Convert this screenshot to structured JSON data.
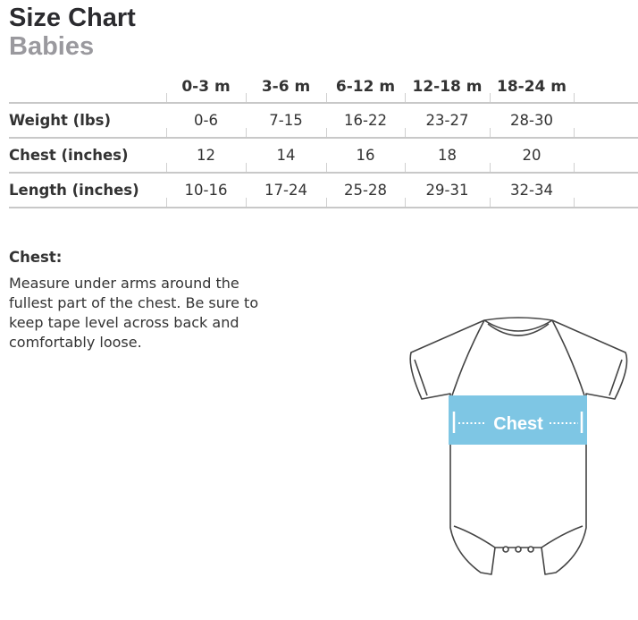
{
  "header": {
    "title": "Size Chart",
    "subtitle": "Babies"
  },
  "table": {
    "columns": [
      "0-3 m",
      "3-6 m",
      "6-12 m",
      "12-18 m",
      "18-24 m"
    ],
    "rows": [
      {
        "label": "Weight (lbs)",
        "values": [
          "0-6",
          "7-15",
          "16-22",
          "23-27",
          "28-30"
        ]
      },
      {
        "label": "Chest (inches)",
        "values": [
          "12",
          "14",
          "16",
          "18",
          "20"
        ]
      },
      {
        "label": "Length (inches)",
        "values": [
          "10-16",
          "17-24",
          "25-28",
          "29-31",
          "32-34"
        ]
      }
    ]
  },
  "chest": {
    "heading": "Chest:",
    "text": "Measure under arms around the fullest part of the chest. Be sure to keep tape level across back and comfortably loose."
  },
  "diagram": {
    "label": "Chest",
    "band_color": "#7ec6e4"
  }
}
